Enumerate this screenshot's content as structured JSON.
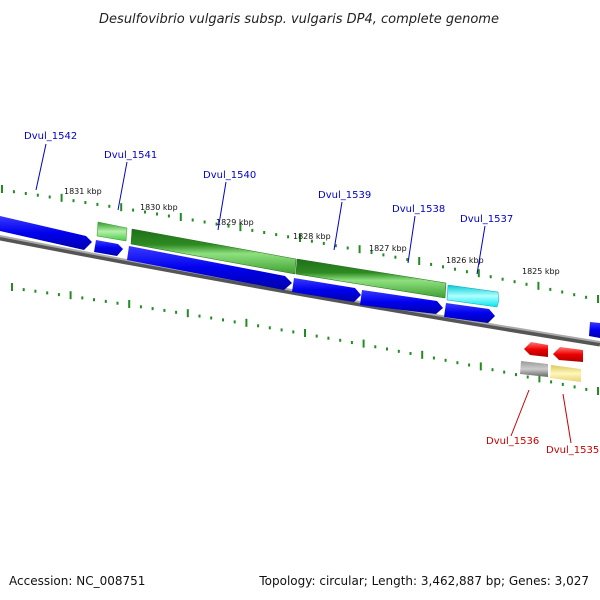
{
  "title": "Desulfovibrio vulgaris subsp. vulgaris DP4, complete genome",
  "footer": {
    "accession": "Accession: NC_008751",
    "summary": "Topology: circular; Length: 3,462,887 bp; Genes: 3,027"
  },
  "colors": {
    "blue_gene": "#0000ee",
    "green_gene": "#2e8b22",
    "light_green_gene": "#44cc44",
    "cyan_gene": "#00e5ee",
    "red_gene": "#ee0000",
    "gray_gene": "#777777",
    "yellow_gene": "#eee08a",
    "backbone": "#888888",
    "tick": "#228b22",
    "blue_label": "#0000cc",
    "red_label": "#cc0000"
  },
  "scale_labels": [
    "1831 kbp",
    "1830 kbp",
    "1829 kbp",
    "1828 kbp",
    "1827 kbp",
    "1826 kbp",
    "1825 kbp"
  ],
  "gene_labels": {
    "forward": [
      "Dvul_1542",
      "Dvul_1541",
      "Dvul_1540",
      "Dvul_1539",
      "Dvul_1538",
      "Dvul_1537"
    ],
    "reverse": [
      "Dvul_1536",
      "Dvul_1535"
    ]
  }
}
